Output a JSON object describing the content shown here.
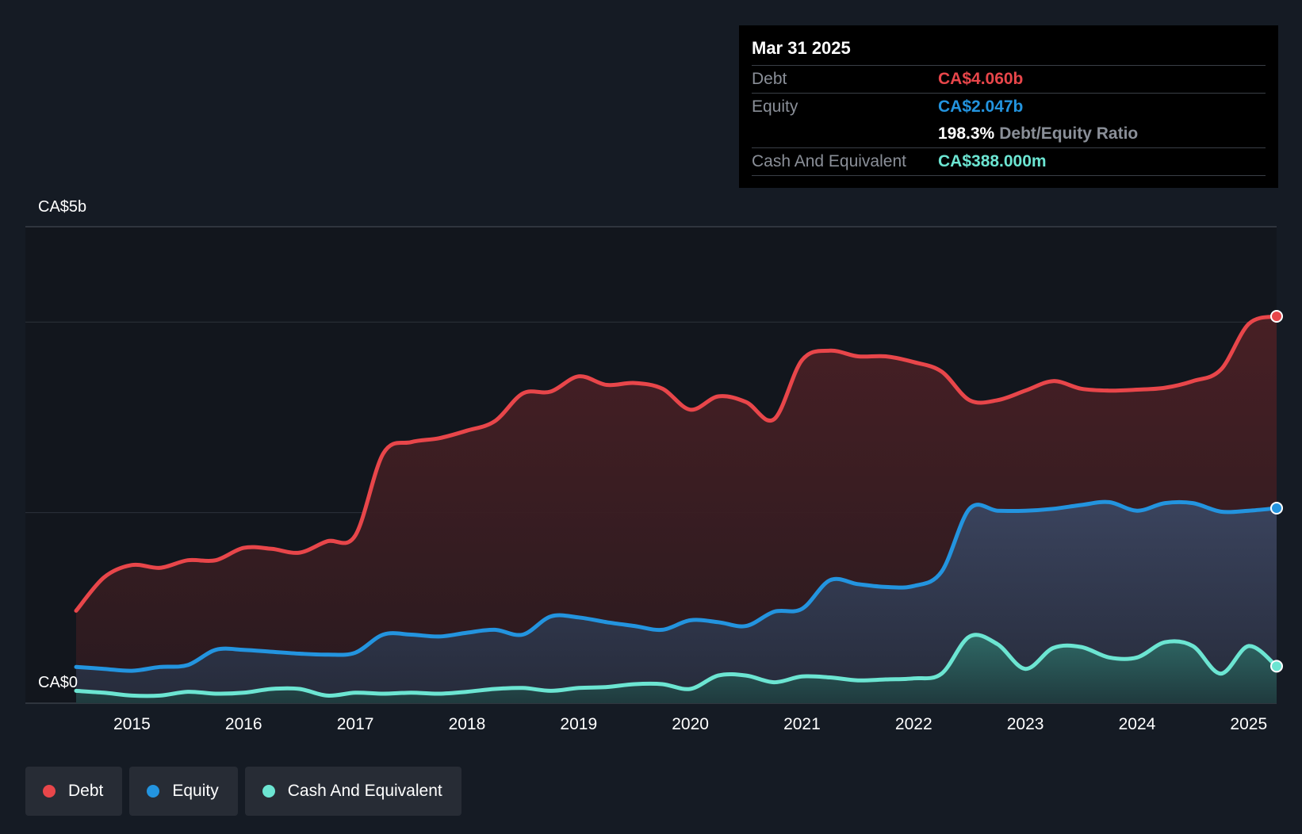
{
  "tooltip": {
    "date": "Mar 31 2025",
    "debt_label": "Debt",
    "debt_value": "CA$4.060b",
    "equity_label": "Equity",
    "equity_value": "CA$2.047b",
    "ratio_value": "198.3%",
    "ratio_label": "Debt/Equity Ratio",
    "cash_label": "Cash And Equivalent",
    "cash_value": "CA$388.000m"
  },
  "legend": {
    "debt": "Debt",
    "equity": "Equity",
    "cash": "Cash And Equivalent"
  },
  "colors": {
    "debt": "#e8464a",
    "equity": "#2394df",
    "cash": "#6ce5d2",
    "background": "#151b24",
    "plot_background": "#12161d"
  },
  "chart_data": {
    "type": "area",
    "y_unit": "CA$ billions",
    "ylim": [
      0,
      4.5
    ],
    "y_tick_labels": [
      "CA$0",
      "CA$5b"
    ],
    "x_tick_labels": [
      "2015",
      "2016",
      "2017",
      "2018",
      "2019",
      "2020",
      "2021",
      "2022",
      "2023",
      "2024",
      "2025"
    ],
    "xlim": [
      2014.5,
      2025.25
    ],
    "grid": true,
    "legend_position": "bottom-left",
    "series": [
      {
        "name": "Debt",
        "color": "#e8464a",
        "x": [
          2014.5,
          2014.75,
          2015.0,
          2015.25,
          2015.5,
          2015.75,
          2016.0,
          2016.25,
          2016.5,
          2016.75,
          2017.0,
          2017.25,
          2017.5,
          2017.75,
          2018.0,
          2018.25,
          2018.5,
          2018.75,
          2019.0,
          2019.25,
          2019.5,
          2019.75,
          2020.0,
          2020.25,
          2020.5,
          2020.75,
          2021.0,
          2021.25,
          2021.5,
          2021.75,
          2022.0,
          2022.25,
          2022.5,
          2022.75,
          2023.0,
          2023.25,
          2023.5,
          2023.75,
          2024.0,
          2024.25,
          2024.5,
          2024.75,
          2025.0,
          2025.25
        ],
        "values": [
          0.97,
          1.32,
          1.45,
          1.42,
          1.5,
          1.5,
          1.63,
          1.62,
          1.58,
          1.7,
          1.76,
          2.62,
          2.74,
          2.78,
          2.86,
          2.96,
          3.25,
          3.27,
          3.43,
          3.34,
          3.36,
          3.3,
          3.08,
          3.22,
          3.16,
          2.98,
          3.6,
          3.7,
          3.64,
          3.64,
          3.58,
          3.48,
          3.18,
          3.18,
          3.28,
          3.38,
          3.3,
          3.28,
          3.29,
          3.31,
          3.38,
          3.5,
          3.98,
          4.06
        ]
      },
      {
        "name": "Equity",
        "color": "#2394df",
        "x": [
          2014.5,
          2014.75,
          2015.0,
          2015.25,
          2015.5,
          2015.75,
          2016.0,
          2016.25,
          2016.5,
          2016.75,
          2017.0,
          2017.25,
          2017.5,
          2017.75,
          2018.0,
          2018.25,
          2018.5,
          2018.75,
          2019.0,
          2019.25,
          2019.5,
          2019.75,
          2020.0,
          2020.25,
          2020.5,
          2020.75,
          2021.0,
          2021.25,
          2021.5,
          2021.75,
          2022.0,
          2022.25,
          2022.5,
          2022.75,
          2023.0,
          2023.25,
          2023.5,
          2023.75,
          2024.0,
          2024.25,
          2024.5,
          2024.75,
          2025.0,
          2025.25
        ],
        "values": [
          0.38,
          0.36,
          0.34,
          0.38,
          0.4,
          0.56,
          0.56,
          0.54,
          0.52,
          0.51,
          0.53,
          0.72,
          0.72,
          0.7,
          0.74,
          0.77,
          0.72,
          0.91,
          0.9,
          0.85,
          0.81,
          0.77,
          0.87,
          0.85,
          0.81,
          0.96,
          0.99,
          1.29,
          1.25,
          1.22,
          1.23,
          1.38,
          2.04,
          2.02,
          2.02,
          2.04,
          2.08,
          2.11,
          2.02,
          2.1,
          2.1,
          2.01,
          2.02,
          2.047
        ]
      },
      {
        "name": "Cash And Equivalent",
        "color": "#6ce5d2",
        "x": [
          2014.5,
          2014.75,
          2015.0,
          2015.25,
          2015.5,
          2015.75,
          2016.0,
          2016.25,
          2016.5,
          2016.75,
          2017.0,
          2017.25,
          2017.5,
          2017.75,
          2018.0,
          2018.25,
          2018.5,
          2018.75,
          2019.0,
          2019.25,
          2019.5,
          2019.75,
          2020.0,
          2020.25,
          2020.5,
          2020.75,
          2021.0,
          2021.25,
          2021.5,
          2021.75,
          2022.0,
          2022.25,
          2022.5,
          2022.75,
          2023.0,
          2023.25,
          2023.5,
          2023.75,
          2024.0,
          2024.25,
          2024.5,
          2024.75,
          2025.0,
          2025.25
        ],
        "values": [
          0.13,
          0.11,
          0.08,
          0.08,
          0.12,
          0.1,
          0.11,
          0.15,
          0.15,
          0.08,
          0.11,
          0.1,
          0.11,
          0.1,
          0.12,
          0.15,
          0.16,
          0.13,
          0.16,
          0.17,
          0.2,
          0.2,
          0.15,
          0.29,
          0.29,
          0.22,
          0.28,
          0.27,
          0.24,
          0.25,
          0.26,
          0.31,
          0.7,
          0.62,
          0.36,
          0.58,
          0.59,
          0.48,
          0.48,
          0.64,
          0.6,
          0.31,
          0.6,
          0.388
        ]
      }
    ]
  }
}
